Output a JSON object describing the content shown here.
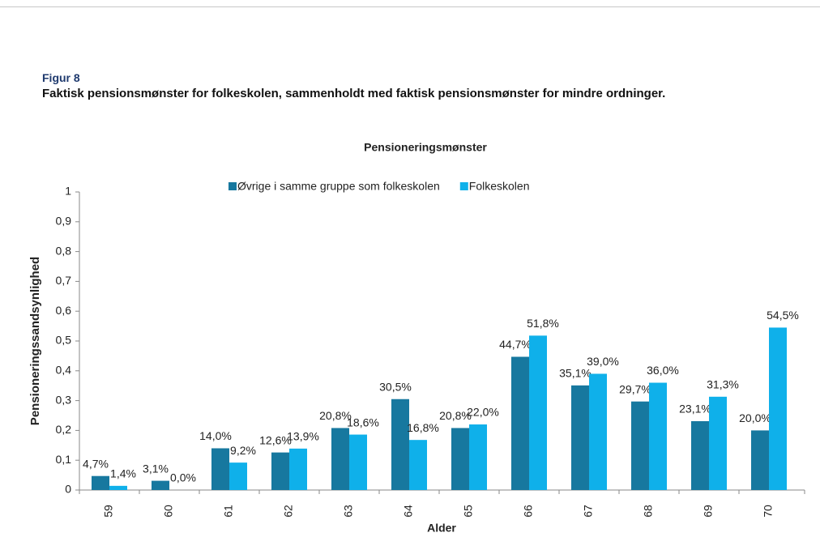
{
  "chart_data": {
    "type": "bar",
    "figure_label": "Figur 8",
    "caption": "Faktisk pensionsmønster for folkeskolen, sammenholdt med faktisk pensionsmønster for mindre ordninger.",
    "title": "Pensioneringsmønster",
    "x_label": "Alder",
    "y_label": "Pensioneringssandsynlighed",
    "categories": [
      "59",
      "60",
      "61",
      "62",
      "63",
      "64",
      "65",
      "66",
      "67",
      "68",
      "69",
      "70"
    ],
    "series": [
      {
        "name": "Øvrige i samme gruppe som folkeskolen",
        "color": "#17789f",
        "values": [
          0.047,
          0.031,
          0.14,
          0.126,
          0.208,
          0.305,
          0.208,
          0.447,
          0.351,
          0.297,
          0.231,
          0.2
        ],
        "value_labels": [
          "4,7%",
          "3,1%",
          "14,0%",
          "12,6%",
          "20,8%",
          "30,5%",
          "20,8%",
          "44,7%",
          "35,1%",
          "29,7%",
          "23,1%",
          "20,0%"
        ]
      },
      {
        "name": "Folkeskolen",
        "color": "#0fb0ea",
        "values": [
          0.014,
          0.0,
          0.092,
          0.139,
          0.186,
          0.168,
          0.22,
          0.518,
          0.39,
          0.36,
          0.313,
          0.545
        ],
        "value_labels": [
          "1,4%",
          "0,0%",
          "9,2%",
          "13,9%",
          "18,6%",
          "16,8%",
          "22,0%",
          "51,8%",
          "39,0%",
          "36,0%",
          "31,3%",
          "54,5%"
        ]
      }
    ],
    "ylim": [
      0,
      1
    ],
    "yticks": [
      0,
      {
        "value": 0.1,
        "label": "0,1"
      },
      {
        "value": 0.2,
        "label": "0,2"
      },
      {
        "value": 0.3,
        "label": "0,3"
      },
      {
        "value": 0.4,
        "label": "0,4"
      },
      {
        "value": 0.5,
        "label": "0,5"
      },
      {
        "value": 0.6,
        "label": "0,6"
      },
      {
        "value": 0.7,
        "label": "0,7"
      },
      {
        "value": 0.8,
        "label": "0,8"
      },
      {
        "value": 0.9,
        "label": "0,9"
      },
      1
    ],
    "grid": false,
    "legend": "top"
  }
}
